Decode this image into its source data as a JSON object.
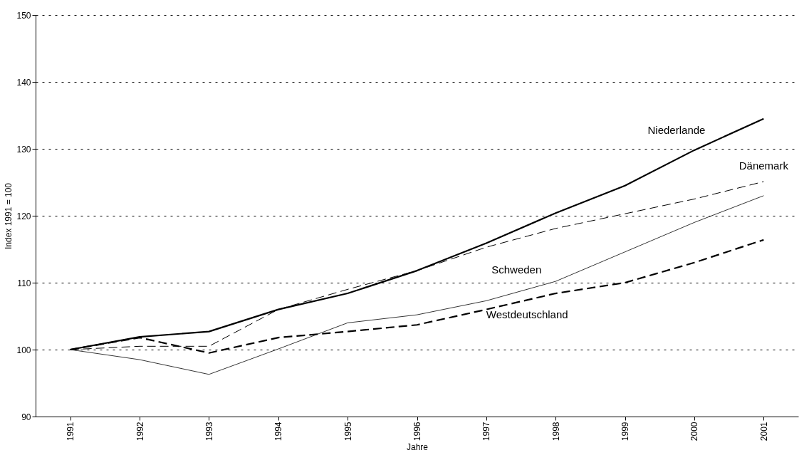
{
  "chart_data": {
    "type": "line",
    "xlabel": "Jahre",
    "ylabel": "Index 1991 = 100",
    "categories": [
      "1991",
      "1992",
      "1993",
      "1994",
      "1995",
      "1996",
      "1997",
      "1998",
      "1999",
      "2000",
      "2001"
    ],
    "series": [
      {
        "name": "Niederlande",
        "color": "#000000",
        "line_style": "solid",
        "values": [
          100,
          101.9,
          102.7,
          106.0,
          108.4,
          111.8,
          115.9,
          120.4,
          124.5,
          129.8,
          134.5
        ]
      },
      {
        "name": "Dänemark",
        "color": "#000000",
        "line_style": "dashed",
        "values": [
          100,
          100.5,
          100.5,
          106.0,
          109.0,
          111.8,
          115.3,
          118.1,
          120.3,
          122.5,
          125.1
        ]
      },
      {
        "name": "Schweden",
        "color": "#000000",
        "line_style": "solid",
        "values": [
          100,
          98.5,
          96.3,
          100.1,
          104.0,
          105.2,
          107.3,
          110.2,
          114.6,
          119.0,
          123.0
        ]
      },
      {
        "name": "Westdeutschland",
        "color": "#000000",
        "line_style": "dashed",
        "values": [
          100,
          101.8,
          99.5,
          101.8,
          102.7,
          103.7,
          106.0,
          108.4,
          110.0,
          113.0,
          116.4
        ]
      }
    ],
    "ylim": [
      90,
      150
    ],
    "yticks": [
      90,
      100,
      110,
      120,
      130,
      140,
      150
    ],
    "grid": "y",
    "marker": "none"
  }
}
